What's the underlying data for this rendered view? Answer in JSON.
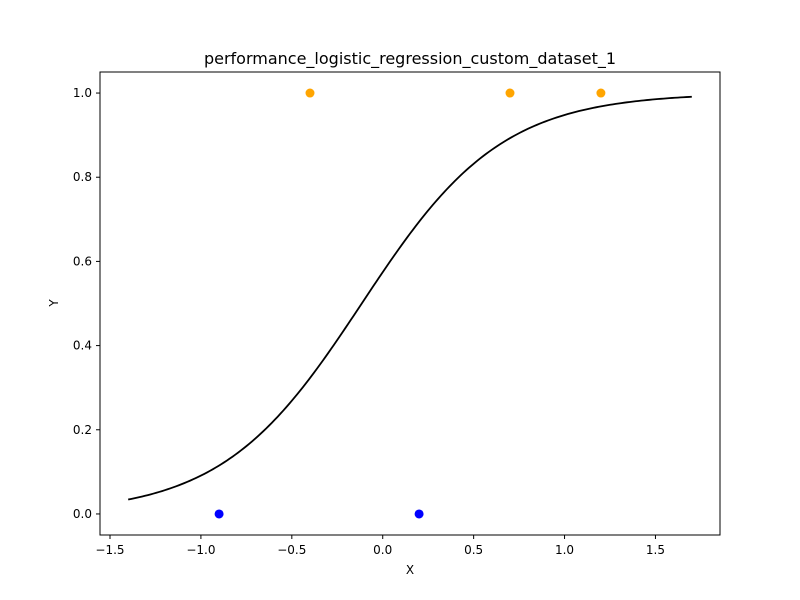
{
  "chart_data": {
    "type": "scatter",
    "title": "performance_logistic_regression_custom_dataset_1",
    "xlabel": "X",
    "ylabel": "Y",
    "xlim": [
      -1.555,
      1.855
    ],
    "ylim": [
      -0.05,
      1.05
    ],
    "x_ticks": [
      -1.5,
      -1.0,
      -0.5,
      0.0,
      0.5,
      1.0,
      1.5
    ],
    "x_tick_labels": [
      "−1.5",
      "−1.0",
      "−0.5",
      "0.0",
      "0.5",
      "1.0",
      "1.5"
    ],
    "y_ticks": [
      0.0,
      0.2,
      0.4,
      0.6,
      0.8,
      1.0
    ],
    "y_tick_labels": [
      "0.0",
      "0.2",
      "0.4",
      "0.6",
      "0.8",
      "1.0"
    ],
    "grid": false,
    "series": [
      {
        "kind": "points",
        "color": "#ffa500",
        "points": [
          {
            "x": -0.4,
            "y": 1
          },
          {
            "x": 0.7,
            "y": 1
          },
          {
            "x": 1.2,
            "y": 1
          }
        ]
      },
      {
        "kind": "points",
        "color": "#0000ff",
        "points": [
          {
            "x": -0.9,
            "y": 0
          },
          {
            "x": 0.2,
            "y": 0
          }
        ]
      },
      {
        "kind": "line",
        "color": "#000000",
        "x_range": [
          -1.4,
          1.7
        ],
        "sigmoid": {
          "slope": 2.6,
          "intercept": 0.3
        }
      }
    ]
  }
}
